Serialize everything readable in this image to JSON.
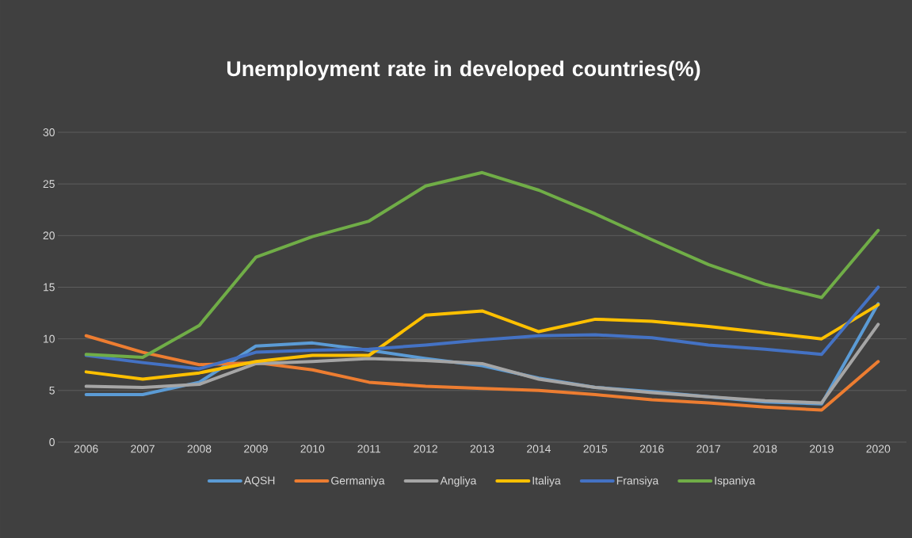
{
  "chart_data": {
    "type": "line",
    "title": "Unemployment rate in developed countries(%)",
    "categories": [
      "2006",
      "2007",
      "2008",
      "2009",
      "2010",
      "2011",
      "2012",
      "2013",
      "2014",
      "2015",
      "2016",
      "2017",
      "2018",
      "2019",
      "2020"
    ],
    "series": [
      {
        "name": "AQSH",
        "color": "#5b9bd5",
        "values": [
          4.6,
          4.6,
          5.8,
          9.3,
          9.6,
          8.9,
          8.1,
          7.4,
          6.2,
          5.3,
          4.9,
          4.4,
          3.9,
          3.7,
          13.4
        ]
      },
      {
        "name": "Germaniya",
        "color": "#ed7d31",
        "values": [
          10.3,
          8.7,
          7.5,
          7.7,
          7.0,
          5.8,
          5.4,
          5.2,
          5.0,
          4.6,
          4.1,
          3.8,
          3.4,
          3.1,
          7.8
        ]
      },
      {
        "name": "Angliya",
        "color": "#a5a5a5",
        "values": [
          5.4,
          5.3,
          5.6,
          7.6,
          7.8,
          8.1,
          7.9,
          7.6,
          6.1,
          5.3,
          4.8,
          4.4,
          4.0,
          3.8,
          11.4
        ]
      },
      {
        "name": "Italiya",
        "color": "#ffc000",
        "values": [
          6.8,
          6.1,
          6.7,
          7.8,
          8.4,
          8.4,
          12.3,
          12.7,
          10.7,
          11.9,
          11.7,
          11.2,
          10.6,
          10.0,
          13.3
        ]
      },
      {
        "name": "Fransiya",
        "color": "#4472c4",
        "values": [
          8.4,
          7.7,
          7.1,
          8.7,
          8.9,
          9.0,
          9.4,
          9.9,
          10.3,
          10.4,
          10.1,
          9.4,
          9.0,
          8.5,
          15.0
        ]
      },
      {
        "name": "Ispaniya",
        "color": "#70ad47",
        "values": [
          8.5,
          8.2,
          11.3,
          17.9,
          19.9,
          21.4,
          24.8,
          26.1,
          24.4,
          22.1,
          19.6,
          17.2,
          15.3,
          14.0,
          20.5
        ]
      }
    ],
    "ylim": [
      0,
      30
    ],
    "yticks": [
      0,
      5,
      10,
      15,
      20,
      25,
      30
    ],
    "grid": "y",
    "legend": "bottom"
  }
}
